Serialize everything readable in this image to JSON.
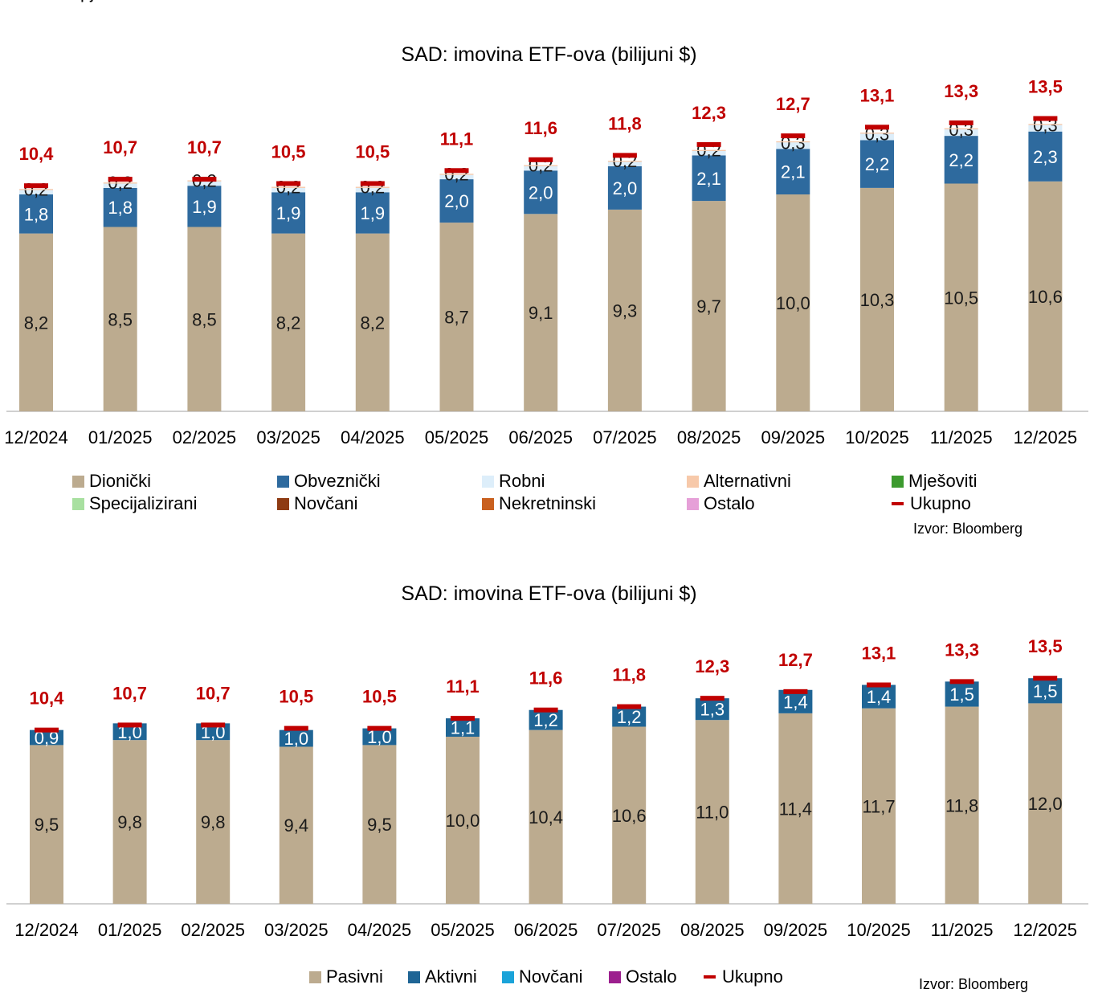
{
  "page": {
    "clipped_heading": "pj"
  },
  "chart_data": [
    {
      "type": "bar",
      "title": "SAD: imovina ETF-ova (bilijuni $)",
      "categories": [
        "12/2024",
        "01/2025",
        "02/2025",
        "03/2025",
        "04/2025",
        "05/2025",
        "06/2025",
        "07/2025",
        "08/2025",
        "09/2025",
        "10/2025",
        "11/2025",
        "12/2025"
      ],
      "series": [
        {
          "name": "Dionički",
          "color": "#bcab8f",
          "values": [
            8.2,
            8.5,
            8.5,
            8.2,
            8.2,
            8.7,
            9.1,
            9.3,
            9.7,
            10.0,
            10.3,
            10.5,
            10.6
          ],
          "labels": [
            "8,2",
            "8,5",
            "8,5",
            "8,2",
            "8,2",
            "8,7",
            "9,1",
            "9,3",
            "9,7",
            "10,0",
            "10,3",
            "10,5",
            "10,6"
          ]
        },
        {
          "name": "Obveznički",
          "color": "#2e6a9e",
          "values": [
            1.8,
            1.8,
            1.9,
            1.9,
            1.9,
            2.0,
            2.0,
            2.0,
            2.1,
            2.1,
            2.2,
            2.2,
            2.3
          ],
          "labels": [
            "1,8",
            "1,8",
            "1,9",
            "1,9",
            "1,9",
            "2,0",
            "2,0",
            "2,0",
            "2,1",
            "2,1",
            "2,2",
            "2,2",
            "2,3"
          ]
        },
        {
          "name": "Robni",
          "color": "#ddeefa",
          "values": [
            0.2,
            0.2,
            0.2,
            0.2,
            0.2,
            0.2,
            0.2,
            0.2,
            0.2,
            0.3,
            0.3,
            0.3,
            0.3
          ],
          "labels": [
            "0,2",
            "0,2",
            "0,2",
            "0,2",
            "0,2",
            "0,2",
            "0,2",
            "0,2",
            "0,2",
            "0,3",
            "0,3",
            "0,3",
            "0,3"
          ]
        },
        {
          "name": "Alternativni",
          "color": "#f7c9aa",
          "values": [
            0.05,
            0.05,
            0.05,
            0.05,
            0.05,
            0.05,
            0.05,
            0.05,
            0.05,
            0.05,
            0.05,
            0.05,
            0.05
          ]
        },
        {
          "name": "Mješoviti",
          "color": "#3c9a2e",
          "values": [
            0,
            0,
            0,
            0,
            0,
            0,
            0,
            0,
            0,
            0,
            0,
            0,
            0
          ]
        },
        {
          "name": "Specijalizirani",
          "color": "#a8e0a0",
          "values": [
            0,
            0,
            0,
            0,
            0,
            0,
            0,
            0,
            0,
            0,
            0,
            0,
            0
          ]
        },
        {
          "name": "Novčani",
          "color": "#8e3b13",
          "values": [
            0,
            0,
            0,
            0,
            0,
            0,
            0,
            0,
            0,
            0,
            0,
            0,
            0
          ]
        },
        {
          "name": "Nekretninski",
          "color": "#c9601f",
          "values": [
            0,
            0,
            0,
            0,
            0,
            0,
            0,
            0,
            0,
            0,
            0,
            0,
            0
          ]
        },
        {
          "name": "Ostalo",
          "color": "#e6a0d8",
          "values": [
            0,
            0,
            0,
            0,
            0,
            0,
            0,
            0,
            0,
            0,
            0,
            0,
            0
          ]
        }
      ],
      "total": {
        "name": "Ukupno",
        "color": "#c00000",
        "values": [
          10.4,
          10.7,
          10.7,
          10.5,
          10.5,
          11.1,
          11.6,
          11.8,
          12.3,
          12.7,
          13.1,
          13.3,
          13.5
        ],
        "labels": [
          "10,4",
          "10,7",
          "10,7",
          "10,5",
          "10,5",
          "11,1",
          "11,6",
          "11,8",
          "12,3",
          "12,7",
          "13,1",
          "13,3",
          "13,5"
        ]
      },
      "ylim": [
        0,
        16.2
      ],
      "legend": {
        "position": "bottom",
        "items": [
          "Dionički",
          "Obveznički",
          "Robni",
          "Alternativni",
          "Mješoviti",
          "Specijalizirani",
          "Novčani",
          "Nekretninski",
          "Ostalo",
          "Ukupno"
        ]
      },
      "source": "Izvor: Bloomberg"
    },
    {
      "type": "bar",
      "title": "SAD: imovina ETF-ova (bilijuni $)",
      "categories": [
        "12/2024",
        "01/2025",
        "02/2025",
        "03/2025",
        "04/2025",
        "05/2025",
        "06/2025",
        "07/2025",
        "08/2025",
        "09/2025",
        "10/2025",
        "11/2025",
        "12/2025"
      ],
      "series": [
        {
          "name": "Pasivni",
          "color": "#bcab8f",
          "values": [
            9.5,
            9.8,
            9.8,
            9.4,
            9.5,
            10.0,
            10.4,
            10.6,
            11.0,
            11.4,
            11.7,
            11.8,
            12.0
          ],
          "labels": [
            "9,5",
            "9,8",
            "9,8",
            "9,4",
            "9,5",
            "10,0",
            "10,4",
            "10,6",
            "11,0",
            "11,4",
            "11,7",
            "11,8",
            "12,0"
          ]
        },
        {
          "name": "Aktivni",
          "color": "#1f6595",
          "values": [
            0.9,
            1.0,
            1.0,
            1.0,
            1.0,
            1.1,
            1.2,
            1.2,
            1.3,
            1.4,
            1.4,
            1.5,
            1.5
          ],
          "labels": [
            "0,9",
            "1,0",
            "1,0",
            "1,0",
            "1,0",
            "1,1",
            "1,2",
            "1,2",
            "1,3",
            "1,4",
            "1,4",
            "1,5",
            "1,5"
          ]
        },
        {
          "name": "Novčani",
          "color": "#1aa3d9",
          "values": [
            0,
            0,
            0,
            0,
            0,
            0,
            0,
            0,
            0,
            0,
            0,
            0,
            0
          ]
        },
        {
          "name": "Ostalo",
          "color": "#9c1f8e",
          "values": [
            0,
            0,
            0,
            0,
            0,
            0,
            0,
            0,
            0,
            0,
            0,
            0,
            0
          ]
        }
      ],
      "total": {
        "name": "Ukupno",
        "color": "#c00000",
        "values": [
          10.4,
          10.7,
          10.7,
          10.5,
          10.5,
          11.1,
          11.6,
          11.8,
          12.3,
          12.7,
          13.1,
          13.3,
          13.5
        ],
        "labels": [
          "10,4",
          "10,7",
          "10,7",
          "10,5",
          "10,5",
          "11,1",
          "11,6",
          "11,8",
          "12,3",
          "12,7",
          "13,1",
          "13,3",
          "13,5"
        ]
      },
      "ylim": [
        0,
        15.6
      ],
      "legend": {
        "position": "bottom",
        "items": [
          "Pasivni",
          "Aktivni",
          "Novčani",
          "Ostalo",
          "Ukupno"
        ]
      },
      "source": "Izvor: Bloomberg"
    }
  ]
}
